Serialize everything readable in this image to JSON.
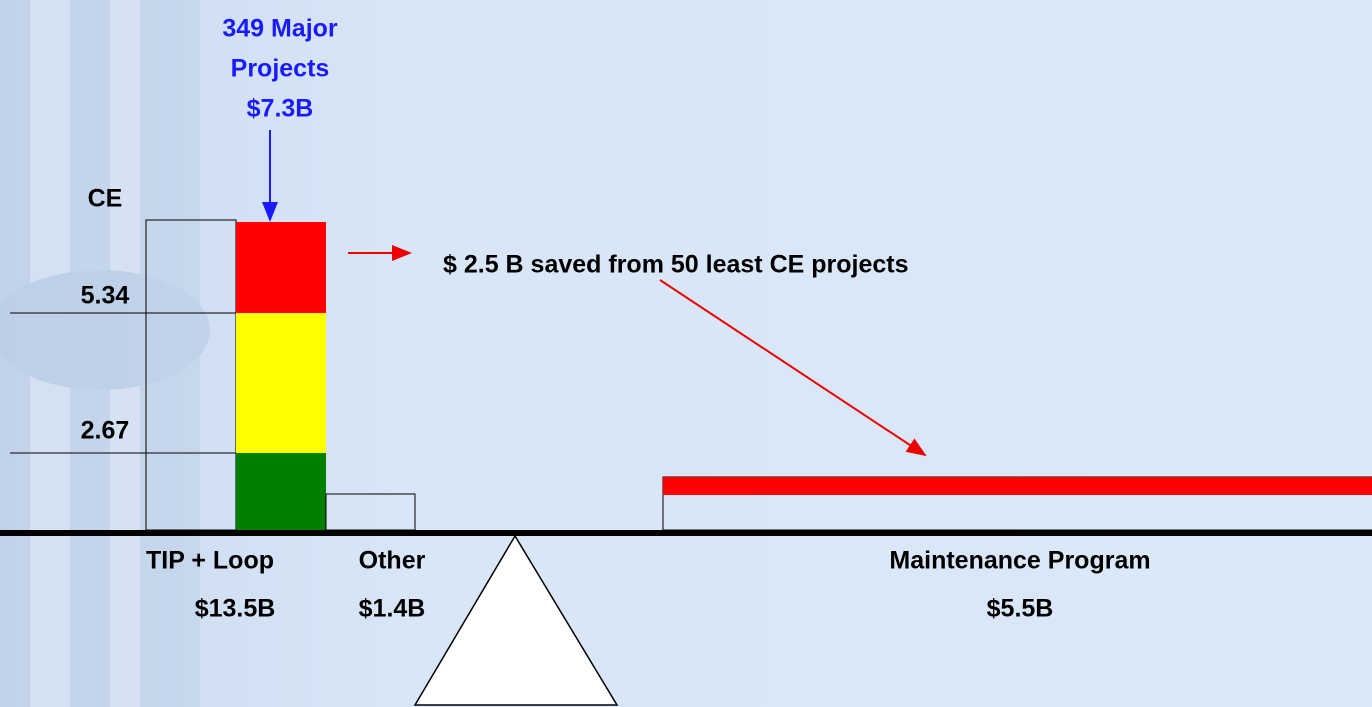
{
  "header": {
    "lines": [
      "349 Major",
      "Projects",
      "$7.3B"
    ]
  },
  "ce_axis": {
    "title": "CE",
    "levels": [
      "5.34",
      "2.67"
    ]
  },
  "savings_note": "$ 2.5 B saved from 50 least CE projects",
  "groups": [
    {
      "name": "TIP + Loop",
      "amount": "$13.5B"
    },
    {
      "name": "Other",
      "amount": "$1.4B"
    },
    {
      "name": "Maintenance Program",
      "amount": "$5.5B"
    }
  ]
}
